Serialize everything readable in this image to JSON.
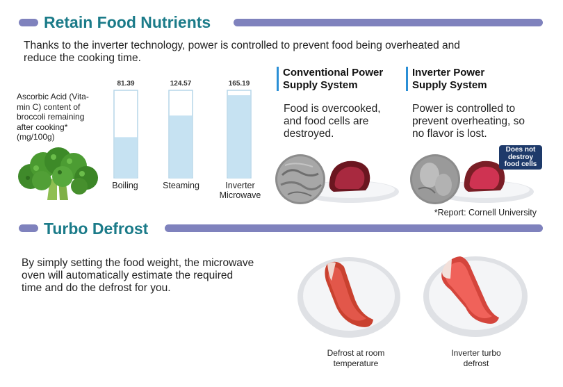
{
  "section1": {
    "title": "Retain Food Nutrients",
    "intro_line1": "Thanks to the inverter technology, power is controlled to prevent food being overheated and",
    "intro_line2": "reduce the cooking time."
  },
  "chart_data": {
    "type": "bar",
    "description_lines": [
      "Ascorbic Acid (Vita-",
      "min C) content of",
      "broccoli remaining",
      "after cooking*",
      "(mg/100g)"
    ],
    "categories": [
      "Boiling",
      "Steaming",
      "Inverter Microwave"
    ],
    "category_lines": [
      [
        "Boiling"
      ],
      [
        "Steaming"
      ],
      [
        "Inverter",
        "Microwave"
      ]
    ],
    "value_labels": [
      "81.39",
      "124.57",
      "165.19"
    ],
    "values": [
      81.39,
      124.57,
      165.19
    ],
    "ylim": [
      0,
      175
    ],
    "colors": {
      "fill": "#c6e2f2",
      "outline": "#b5d5e8"
    }
  },
  "comparison": {
    "conventional": {
      "title_line1": "Conventional Power",
      "title_line2": "Supply System",
      "desc_lines": [
        "Food is overcooked,",
        "and food cells are",
        "destroyed."
      ]
    },
    "inverter": {
      "title_line1": "Inverter Power",
      "title_line2": "Supply System",
      "desc_lines": [
        "Power is controlled to",
        "prevent overheating, so",
        "no flavor is lost."
      ],
      "badge_lines": [
        "Does not",
        "destroy",
        "food cells"
      ]
    },
    "source_note": "*Report: Cornell University"
  },
  "section2": {
    "title": "Turbo Defrost",
    "body_lines": [
      "By simply setting the food weight, the microwave",
      "oven will automatically estimate the required",
      "time and do the defrost for you."
    ],
    "captions": [
      {
        "line1": "Defrost at room",
        "line2": "temperature"
      },
      {
        "line1": "Inverter turbo",
        "line2": "defrost"
      }
    ]
  },
  "colors": {
    "accent": "#1b7b89",
    "pill": "#7f82bd",
    "marker": "#2b8fd6",
    "badge": "#1e3a6a"
  }
}
